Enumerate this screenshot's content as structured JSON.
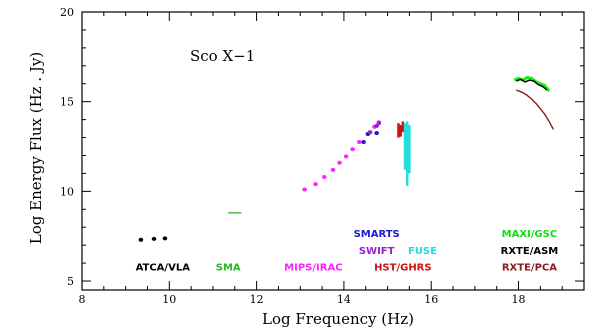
{
  "chart_data": {
    "type": "scatter",
    "title": "Sco X−1",
    "xlabel": "Log Frequency (Hz)",
    "ylabel": "Log Energy Flux (Hz . Jy)",
    "xlim": [
      8,
      19.5
    ],
    "ylim": [
      4.5,
      20
    ],
    "xticks": [
      8,
      10,
      12,
      14,
      16,
      18
    ],
    "yticks": [
      5,
      10,
      15,
      20
    ],
    "grid": false,
    "series": [
      {
        "name": "ATCA/VLA",
        "color": "#000000",
        "marker": "circle",
        "x": [
          9.35,
          9.65,
          9.9
        ],
        "y": [
          7.3,
          7.35,
          7.38
        ]
      },
      {
        "name": "SMA",
        "color": "#22aa22",
        "marker": "segment",
        "x": [
          11.35,
          11.65
        ],
        "y": [
          8.8,
          8.8
        ]
      },
      {
        "name": "MIPS/IRAC",
        "color": "#ff22ff",
        "marker": "circle",
        "x": [
          13.1,
          13.35,
          13.55,
          13.75,
          13.9,
          14.05,
          14.2,
          14.35,
          14.55,
          14.7,
          14.8
        ],
        "y": [
          10.1,
          10.4,
          10.8,
          11.2,
          11.6,
          11.95,
          12.35,
          12.75,
          13.2,
          13.6,
          13.85
        ]
      },
      {
        "name": "SMARTS",
        "color": "#1a1acc",
        "marker": "circle",
        "x": [
          14.45,
          14.55,
          14.75
        ],
        "y": [
          12.75,
          13.2,
          13.25
        ]
      },
      {
        "name": "SWIFT",
        "color": "#9922cc",
        "marker": "circle",
        "x": [
          14.6,
          14.75,
          14.8
        ],
        "y": [
          13.3,
          13.65,
          13.8
        ]
      },
      {
        "name": "HST/GHRS",
        "color": "#cc1111",
        "marker": "band",
        "x": [
          15.25,
          15.3,
          15.35
        ],
        "y_low": [
          13.0,
          13.05,
          13.3
        ],
        "y_high": [
          13.8,
          13.7,
          13.9
        ]
      },
      {
        "name": "FUSE",
        "color": "#22dddd",
        "marker": "band",
        "x": [
          15.4,
          15.45,
          15.5
        ],
        "y_low": [
          11.2,
          10.3,
          11.0
        ],
        "y_high": [
          13.8,
          13.9,
          13.7
        ]
      },
      {
        "name": "MAXI/GSC",
        "color": "#11ee11",
        "marker": "line",
        "x": [
          17.9,
          18.0,
          18.1,
          18.2,
          18.3,
          18.4,
          18.5,
          18.6,
          18.7
        ],
        "y": [
          16.2,
          16.3,
          16.2,
          16.35,
          16.3,
          16.1,
          16.0,
          15.9,
          15.6
        ]
      },
      {
        "name": "RXTE/ASM",
        "color": "#000000",
        "marker": "line",
        "x": [
          17.95,
          18.05,
          18.15,
          18.25,
          18.35,
          18.45,
          18.55,
          18.65
        ],
        "y": [
          16.15,
          16.25,
          16.1,
          16.2,
          16.15,
          15.95,
          15.85,
          15.65
        ]
      },
      {
        "name": "RXTE/PCA",
        "color": "#8b1a1a",
        "marker": "line",
        "x": [
          17.95,
          18.1,
          18.2,
          18.3,
          18.4,
          18.5,
          18.6,
          18.7,
          18.8
        ],
        "y": [
          15.65,
          15.5,
          15.35,
          15.15,
          14.9,
          14.6,
          14.3,
          13.9,
          13.45
        ]
      }
    ],
    "instrument_labels": [
      {
        "text": "ATCA/VLA",
        "color": "#000000",
        "x": 9.85,
        "y": 5.6
      },
      {
        "text": "SMA",
        "color": "#22bb22",
        "x": 11.35,
        "y": 5.6
      },
      {
        "text": "MIPS/IRAC",
        "color": "#ff22ff",
        "x": 13.3,
        "y": 5.6
      },
      {
        "text": "SMARTS",
        "color": "#1a1acc",
        "x": 14.75,
        "y": 7.45
      },
      {
        "text": "SWIFT",
        "color": "#9922cc",
        "x": 14.75,
        "y": 6.5
      },
      {
        "text": "FUSE",
        "color": "#22dddd",
        "x": 15.8,
        "y": 6.5
      },
      {
        "text": "HST/GHRS",
        "color": "#cc1111",
        "x": 15.35,
        "y": 5.6
      },
      {
        "text": "MAXI/GSC",
        "color": "#11dd11",
        "x": 18.25,
        "y": 7.45
      },
      {
        "text": "RXTE/ASM",
        "color": "#000000",
        "x": 18.25,
        "y": 6.5
      },
      {
        "text": "RXTE/PCA",
        "color": "#8b1a1a",
        "x": 18.25,
        "y": 5.6
      }
    ]
  }
}
